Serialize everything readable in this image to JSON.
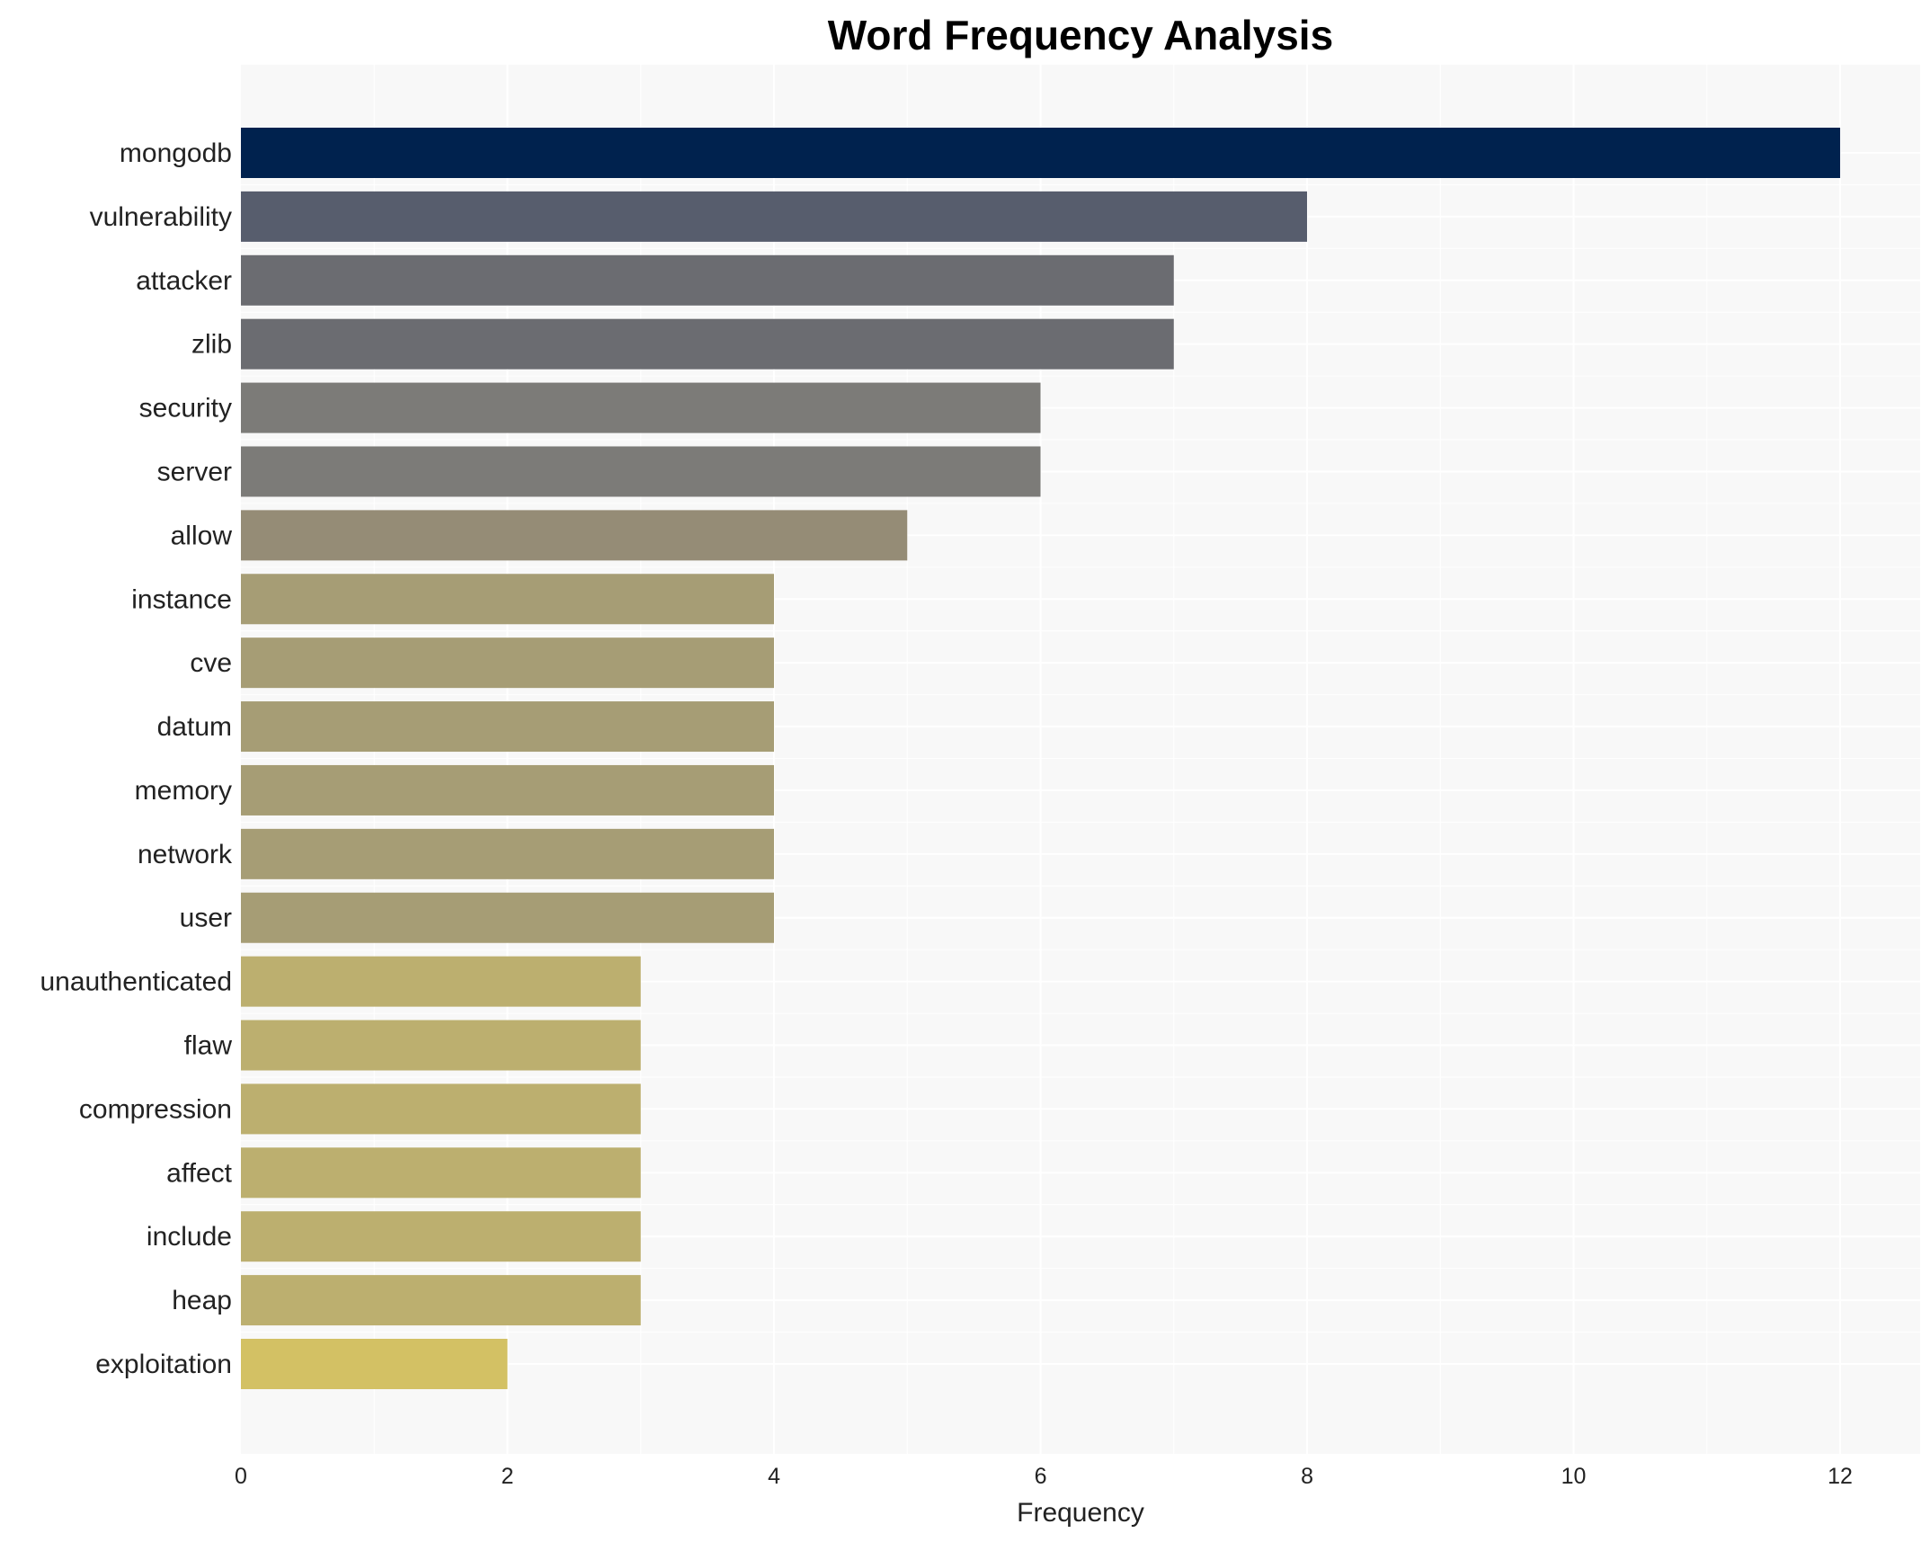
{
  "chart_data": {
    "type": "bar",
    "orientation": "horizontal",
    "title": "Word Frequency Analysis",
    "xlabel": "Frequency",
    "ylabel": "",
    "xlim": [
      0,
      12.6
    ],
    "xticks": [
      0,
      2,
      4,
      6,
      8,
      10,
      12
    ],
    "grid": true,
    "categories": [
      "mongodb",
      "vulnerability",
      "attacker",
      "zlib",
      "security",
      "server",
      "allow",
      "instance",
      "cve",
      "datum",
      "memory",
      "network",
      "user",
      "unauthenticated",
      "flaw",
      "compression",
      "affect",
      "include",
      "heap",
      "exploitation"
    ],
    "values": [
      12,
      8,
      7,
      7,
      6,
      6,
      5,
      4,
      4,
      4,
      4,
      4,
      4,
      3,
      3,
      3,
      3,
      3,
      3,
      2
    ],
    "colors": [
      "#00224e",
      "#575d6d",
      "#6b6c71",
      "#6b6c71",
      "#7c7b78",
      "#7c7b78",
      "#958c76",
      "#a69d75",
      "#a69d75",
      "#a69d75",
      "#a69d75",
      "#a69d75",
      "#a69d75",
      "#bcaf6f",
      "#bcaf6f",
      "#bcaf6f",
      "#bcaf6f",
      "#bcaf6f",
      "#bcaf6f",
      "#d3c164"
    ],
    "background": "#f8f8f8"
  }
}
